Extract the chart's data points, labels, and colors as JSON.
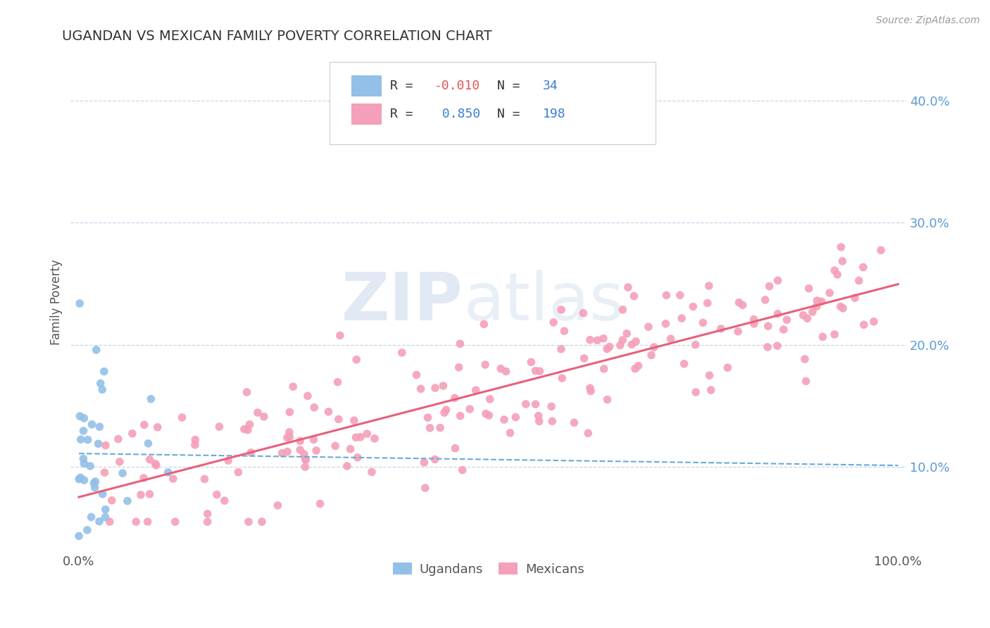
{
  "title": "UGANDAN VS MEXICAN FAMILY POVERTY CORRELATION CHART",
  "source": "Source: ZipAtlas.com",
  "ugandan_R": -0.01,
  "ugandan_N": 34,
  "mexican_R": 0.85,
  "mexican_N": 198,
  "ugandan_color": "#92c0e8",
  "mexican_color": "#f4a0b8",
  "ugandan_trend_color": "#6aaad4",
  "mexican_trend_color": "#e8607a",
  "background_color": "#ffffff",
  "grid_color": "#c8d4e8",
  "watermark_top": "ZIP",
  "watermark_bot": "atlas",
  "legend_label_ugandan": "Ugandans",
  "legend_label_mexican": "Mexicans",
  "xlim": [
    -0.01,
    1.01
  ],
  "ylim": [
    0.03,
    0.44
  ],
  "yticks": [
    0.1,
    0.2,
    0.3,
    0.4
  ],
  "ytick_labels": [
    "10.0%",
    "20.0%",
    "30.0%",
    "40.0%"
  ],
  "xticks": [
    0.0,
    1.0
  ],
  "xtick_labels": [
    "0.0%",
    "100.0%"
  ]
}
